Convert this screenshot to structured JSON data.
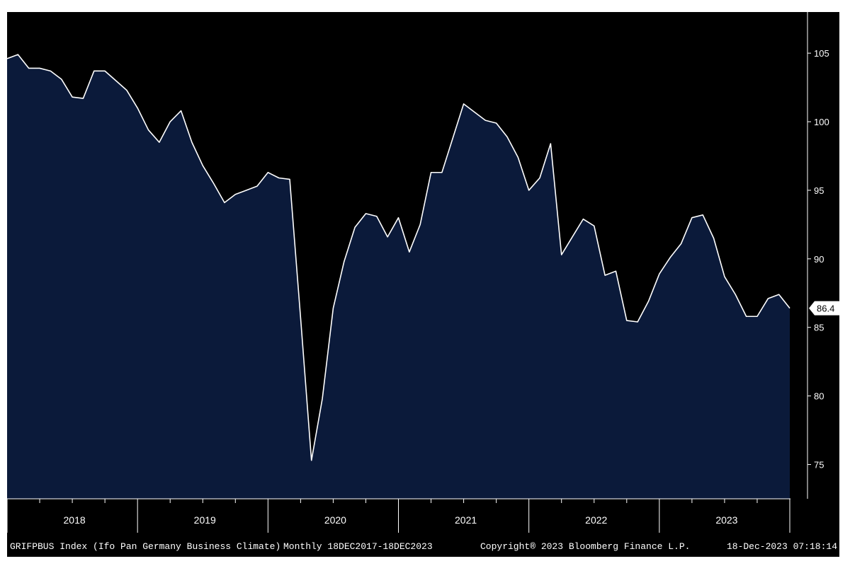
{
  "colors": {
    "background": "#000000",
    "area_fill": "#0b1a3a",
    "line": "#ffffff",
    "axis": "#ffffff",
    "last_value_box": "#ffffff"
  },
  "footer": {
    "ticker": "GRIFPBUS Index (Ifo Pan Germany Business Climate)",
    "frequency_range": "Monthly 18DEC2017-18DEC2023",
    "copyright": "Copyright® 2023 Bloomberg Finance L.P.",
    "timestamp": "18-Dec-2023 07:18:14"
  },
  "chart_data": {
    "type": "area",
    "title": "",
    "xlabel": "",
    "ylabel": "",
    "y_axis_position": "right",
    "ylim": [
      72.5,
      108
    ],
    "y_ticks": [
      75,
      80,
      85,
      90,
      95,
      100,
      105
    ],
    "year_labels": [
      "2018",
      "2019",
      "2020",
      "2021",
      "2022",
      "2023"
    ],
    "last_value_label": "86.4",
    "grid": false,
    "series": [
      {
        "values": [
          104.6,
          104.9,
          103.9,
          103.9,
          103.7,
          103.1,
          101.8,
          101.7,
          103.7,
          103.7,
          103.0,
          102.3,
          101.0,
          99.4,
          98.5,
          100.0,
          100.8,
          98.5,
          96.8,
          95.5,
          94.1,
          94.7,
          95.0,
          95.3,
          96.3,
          95.9,
          95.8,
          85.7,
          75.3,
          79.8,
          86.4,
          89.8,
          92.3,
          93.3,
          93.1,
          91.6,
          93.0,
          90.5,
          92.5,
          96.3,
          96.3,
          98.8,
          101.3,
          100.7,
          100.1,
          99.9,
          98.9,
          97.4,
          95.0,
          95.9,
          98.4,
          90.3,
          91.6,
          92.9,
          92.4,
          88.8,
          89.1,
          85.5,
          85.4,
          86.9,
          88.9,
          90.1,
          91.1,
          93.0,
          93.2,
          91.5,
          88.7,
          87.4,
          85.8,
          85.8,
          87.1,
          87.4,
          86.4
        ]
      }
    ]
  }
}
